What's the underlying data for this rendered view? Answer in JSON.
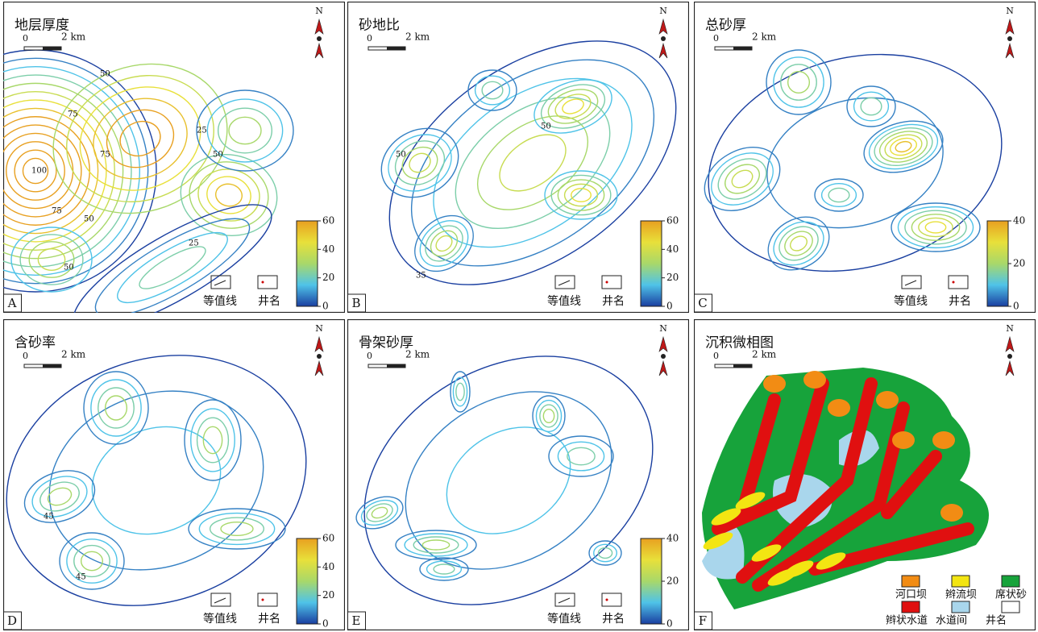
{
  "panels": [
    {
      "letter": "A",
      "title": "地层厚度",
      "scale": {
        "zero": "0",
        "length": "2 km"
      },
      "north": "N",
      "colorbar_ticks": [
        0,
        20,
        40,
        60
      ],
      "legend": [
        "等值线",
        "井名"
      ],
      "contour_labels": [
        "100",
        "75",
        "75",
        "50",
        "50",
        "50",
        "25",
        "25",
        "50",
        "75"
      ]
    },
    {
      "letter": "B",
      "title": "砂地比",
      "scale": {
        "zero": "0",
        "length": "2 km"
      },
      "north": "N",
      "colorbar_ticks": [
        0,
        20,
        40,
        60
      ],
      "legend": [
        "等值线",
        "井名"
      ],
      "contour_labels": [
        "50",
        "50",
        "35"
      ]
    },
    {
      "letter": "C",
      "title": "总砂厚",
      "scale": {
        "zero": "0",
        "length": "2 km"
      },
      "north": "N",
      "colorbar_ticks": [
        0,
        20,
        40
      ],
      "legend": [
        "等值线",
        "井名"
      ],
      "contour_labels": []
    },
    {
      "letter": "D",
      "title": "含砂率",
      "scale": {
        "zero": "0",
        "length": "2 km"
      },
      "north": "N",
      "colorbar_ticks": [
        0,
        20,
        40,
        60
      ],
      "legend": [
        "等值线",
        "井名"
      ],
      "contour_labels": [
        "45",
        "45"
      ]
    },
    {
      "letter": "E",
      "title": "骨架砂厚",
      "scale": {
        "zero": "0",
        "length": "2 km"
      },
      "north": "N",
      "colorbar_ticks": [
        0,
        20,
        40
      ],
      "legend": [
        "等值线",
        "井名"
      ],
      "contour_labels": []
    },
    {
      "letter": "F",
      "title": "沉积微相图",
      "scale": {
        "zero": "0",
        "length": "2 km"
      },
      "north": "N",
      "legend": [
        "河口坝",
        "辫流坝",
        "席状砂",
        "辫状水道",
        "水道间",
        "井名"
      ]
    }
  ]
}
